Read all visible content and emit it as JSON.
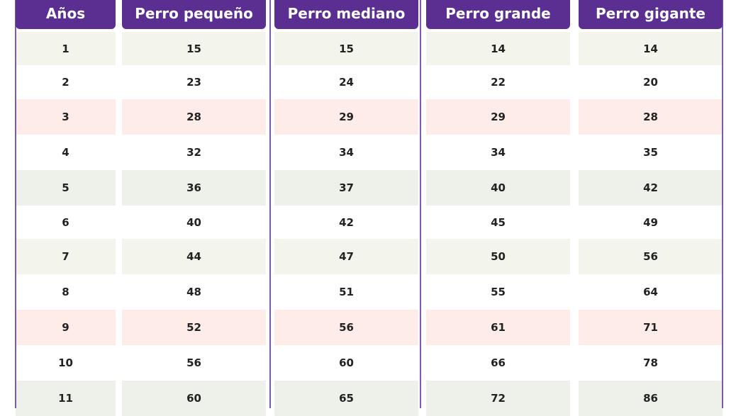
{
  "table": {
    "header": [
      "Años",
      "Perro pequeño",
      "Perro mediano",
      "Perro grande",
      "Perro gigante"
    ],
    "rows": [
      [
        "1",
        "15",
        "15",
        "14",
        "14"
      ],
      [
        "2",
        "23",
        "24",
        "22",
        "20"
      ],
      [
        "3",
        "28",
        "29",
        "29",
        "28"
      ],
      [
        "4",
        "32",
        "34",
        "34",
        "35"
      ],
      [
        "5",
        "36",
        "37",
        "40",
        "42"
      ],
      [
        "6",
        "40",
        "42",
        "45",
        "49"
      ],
      [
        "7",
        "44",
        "47",
        "50",
        "56"
      ],
      [
        "8",
        "48",
        "51",
        "55",
        "64"
      ],
      [
        "9",
        "52",
        "56",
        "61",
        "71"
      ],
      [
        "10",
        "56",
        "60",
        "66",
        "78"
      ],
      [
        "11",
        "60",
        "65",
        "72",
        "86"
      ]
    ]
  }
}
